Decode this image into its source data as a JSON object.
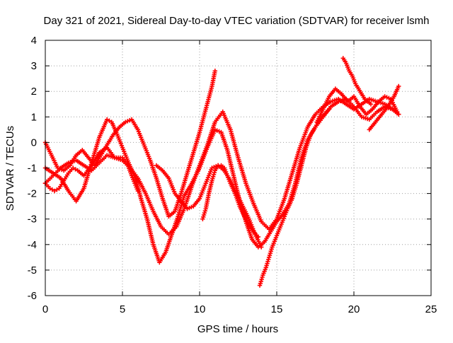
{
  "chart_data": {
    "type": "scatter",
    "title": "Day 321 of 2021, Sidereal Day-to-day VTEC variation (SDTVAR) for receiver lsmh",
    "xlabel": "GPS time / hours",
    "ylabel": "SDTVAR / TECUs",
    "xlim": [
      0,
      25
    ],
    "ylim": [
      -6,
      4
    ],
    "xticks": [
      0,
      5,
      10,
      15,
      20,
      25
    ],
    "yticks": [
      -6,
      -5,
      -4,
      -3,
      -2,
      -1,
      0,
      1,
      2,
      3,
      4
    ],
    "grid": true,
    "marker": "plus",
    "color": "#ff0000",
    "series": [
      {
        "x": [
          0.0,
          0.5,
          1.0,
          1.5,
          2.0,
          2.5,
          3.0,
          3.5,
          4.0,
          4.3,
          4.6,
          5.0,
          5.4,
          5.9,
          6.2,
          6.6,
          7.0,
          7.4,
          7.8,
          8.2,
          8.6,
          9.0,
          9.5,
          10.0,
          10.5,
          11.0,
          11.4,
          11.8,
          12.2,
          12.6,
          13.0,
          13.4,
          13.8,
          14.2,
          14.6,
          15.0,
          15.4,
          15.8,
          16.2,
          16.6,
          17.0,
          17.5,
          18.0,
          18.5,
          19.0,
          19.5,
          20.0,
          20.5,
          21.0,
          21.5,
          22.0,
          22.5,
          22.9
        ],
        "y": [
          -1.0,
          -1.2,
          -1.4,
          -1.9,
          -2.3,
          -1.8,
          -0.8,
          0.2,
          0.9,
          0.8,
          0.4,
          -0.2,
          -0.8,
          -1.5,
          -2.2,
          -3.0,
          -4.0,
          -4.7,
          -4.3,
          -3.6,
          -2.9,
          -2.1,
          -1.6,
          -1.0,
          -0.2,
          0.5,
          0.4,
          -0.3,
          -1.3,
          -2.3,
          -3.1,
          -3.8,
          -4.1,
          -3.9,
          -3.5,
          -3.1,
          -2.8,
          -2.4,
          -1.6,
          -0.6,
          0.1,
          0.6,
          1.0,
          1.4,
          1.6,
          1.7,
          1.4,
          1.0,
          0.9,
          1.2,
          1.4,
          1.3,
          1.1
        ]
      },
      {
        "x": [
          0.0,
          0.5,
          1.0,
          1.5,
          2.0,
          2.5,
          3.0,
          3.5,
          4.0,
          4.5,
          5.0,
          5.5,
          6.0,
          6.5,
          7.0,
          7.5,
          8.0,
          8.5,
          9.0,
          9.5,
          10.0,
          10.5,
          11.0,
          11.5,
          12.0,
          12.5,
          13.0,
          13.5,
          14.0,
          14.5,
          15.0,
          15.5,
          16.0,
          16.5,
          17.0,
          17.5,
          18.0,
          18.5,
          19.0,
          19.5,
          20.0,
          20.5,
          21.0,
          21.5,
          22.0,
          22.5,
          22.9
        ],
        "y": [
          -1.6,
          -1.3,
          -1.0,
          -0.8,
          -0.7,
          -0.9,
          -1.1,
          -0.8,
          -0.5,
          -0.6,
          -0.7,
          -1.0,
          -1.4,
          -2.0,
          -2.7,
          -3.3,
          -3.6,
          -3.3,
          -2.6,
          -1.7,
          -0.9,
          -0.1,
          0.8,
          1.2,
          0.5,
          -0.6,
          -1.6,
          -2.4,
          -3.1,
          -3.4,
          -3.0,
          -2.2,
          -1.2,
          -0.2,
          0.6,
          1.1,
          1.4,
          1.6,
          1.7,
          1.5,
          1.3,
          1.5,
          1.7,
          1.6,
          1.5,
          1.3,
          1.1
        ]
      },
      {
        "x": [
          0.0,
          0.4,
          0.8,
          1.2,
          1.6,
          2.0,
          2.4,
          2.8,
          3.2,
          3.6,
          4.0,
          4.4,
          4.8,
          5.2,
          5.6,
          6.0,
          6.4,
          6.8,
          7.2,
          7.6,
          8.0,
          8.4,
          8.8,
          9.2,
          9.6,
          10.0,
          10.4,
          10.8,
          11.0
        ],
        "y": [
          0.0,
          -0.5,
          -1.0,
          -1.1,
          -0.9,
          -0.5,
          -0.3,
          -0.6,
          -0.9,
          -0.5,
          -0.1,
          0.3,
          0.6,
          0.8,
          0.9,
          0.5,
          -0.1,
          -0.7,
          -1.4,
          -2.2,
          -2.9,
          -2.7,
          -2.0,
          -1.2,
          -0.4,
          0.4,
          1.3,
          2.2,
          2.8
        ]
      },
      {
        "x": [
          0.0,
          0.3,
          0.6,
          0.9,
          1.2,
          1.5,
          1.8,
          2.1,
          2.5,
          3.0,
          3.5,
          4.0,
          4.5,
          5.0,
          5.3,
          5.6,
          6.0
        ],
        "y": [
          -1.6,
          -1.8,
          -1.9,
          -1.8,
          -1.5,
          -1.2,
          -1.0,
          -1.1,
          -1.3,
          -0.9,
          -0.4,
          -0.2,
          -0.6,
          -0.6,
          -0.8,
          -1.3,
          -1.9
        ]
      },
      {
        "x": [
          7.2,
          7.6,
          8.0,
          8.4,
          8.8,
          9.2,
          9.6,
          10.0,
          10.4,
          10.8,
          11.2,
          11.6,
          12.0,
          12.4,
          12.8,
          13.2,
          13.6,
          14.0
        ],
        "y": [
          -0.9,
          -1.1,
          -1.4,
          -2.0,
          -2.3,
          -2.6,
          -2.5,
          -2.2,
          -1.6,
          -1.0,
          -0.9,
          -1.1,
          -1.5,
          -2.0,
          -2.5,
          -3.0,
          -3.6,
          -4.1
        ]
      },
      {
        "x": [
          10.2,
          10.4,
          10.6,
          10.8,
          11.0,
          11.2,
          11.4,
          11.6,
          11.8,
          12.0,
          12.3,
          12.6,
          12.9,
          13.2,
          13.5,
          13.8
        ],
        "y": [
          -3.0,
          -2.6,
          -2.0,
          -1.5,
          -1.1,
          -0.9,
          -0.9,
          -1.0,
          -1.3,
          -1.6,
          -2.0,
          -2.5,
          -2.9,
          -3.2,
          -3.5,
          -3.7
        ]
      },
      {
        "x": [
          13.9,
          14.1,
          14.3,
          14.5,
          14.7,
          14.9,
          15.1,
          15.3,
          15.5,
          15.7,
          16.0,
          16.3,
          16.6,
          16.9,
          17.2,
          17.5,
          17.8,
          18.1,
          18.4
        ],
        "y": [
          -5.6,
          -5.2,
          -4.9,
          -4.5,
          -4.1,
          -3.8,
          -3.5,
          -3.2,
          -2.9,
          -2.6,
          -2.2,
          -1.6,
          -0.9,
          -0.2,
          0.3,
          0.6,
          0.9,
          1.1,
          1.3
        ]
      },
      {
        "x": [
          17.6,
          18.0,
          18.4,
          18.8,
          19.2,
          19.6,
          20.0,
          20.4,
          20.8,
          21.2,
          21.6,
          22.0,
          22.4,
          22.8
        ],
        "y": [
          0.8,
          1.3,
          1.8,
          2.1,
          1.9,
          1.6,
          1.8,
          1.4,
          1.1,
          1.3,
          1.6,
          1.8,
          1.7,
          1.2
        ]
      },
      {
        "x": [
          19.3,
          19.5,
          19.7,
          19.9,
          20.1,
          20.3,
          20.5,
          20.7,
          20.9,
          21.1
        ],
        "y": [
          3.3,
          3.1,
          2.8,
          2.6,
          2.3,
          2.1,
          1.9,
          1.7,
          1.6,
          1.5
        ]
      },
      {
        "x": [
          21.0,
          21.4,
          21.8,
          22.2,
          22.6,
          22.9
        ],
        "y": [
          0.5,
          0.8,
          1.1,
          1.4,
          1.8,
          2.2
        ]
      }
    ]
  }
}
